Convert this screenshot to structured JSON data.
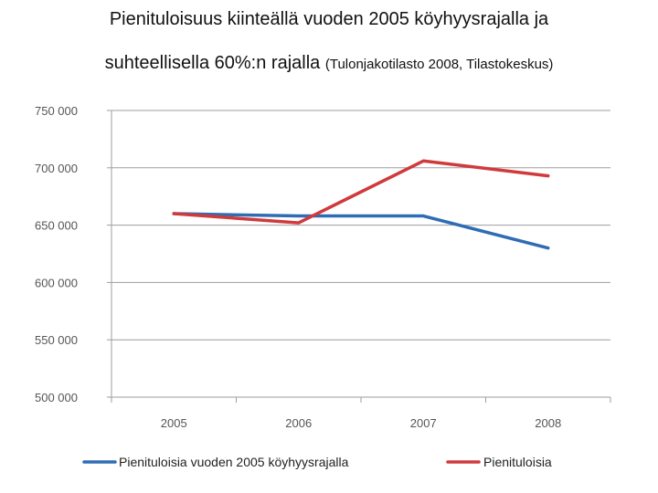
{
  "header": {
    "title_line1": "Pienituloisuus kiinteällä vuoden 2005 köyhyysrajalla ja",
    "title_line2": "suhteellisella 60%:n rajalla",
    "subtitle": "(Tulonjakotilasto 2008, Tilastokeskus)"
  },
  "chart_data": {
    "type": "line",
    "categories": [
      "2005",
      "2006",
      "2007",
      "2008"
    ],
    "y_ticks": [
      "500 000",
      "550 000",
      "600 000",
      "650 000",
      "700 000",
      "750 000"
    ],
    "y_tick_values": [
      500000,
      550000,
      600000,
      650000,
      700000,
      750000
    ],
    "ylim": [
      500000,
      750000
    ],
    "grid": true,
    "legend_position": "bottom",
    "series": [
      {
        "name": "Pienituloisia vuoden 2005 köyhyysrajalla",
        "color": "#2e6db4",
        "values": [
          660000,
          658000,
          658000,
          630000
        ]
      },
      {
        "name": "Pienituloisia",
        "color": "#d03a3c",
        "values": [
          660000,
          652000,
          706000,
          693000
        ]
      }
    ]
  }
}
